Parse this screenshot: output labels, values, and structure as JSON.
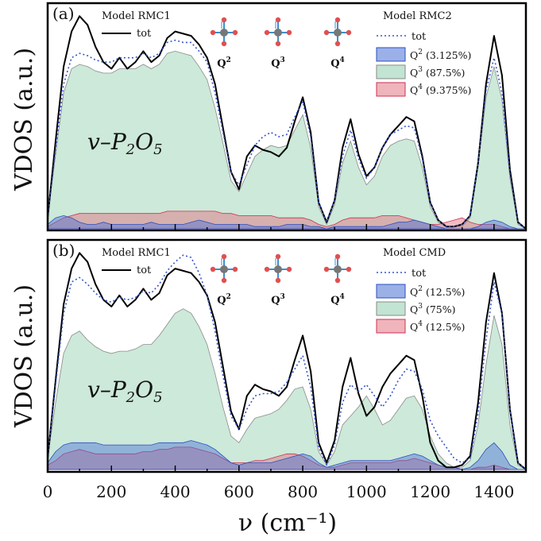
{
  "figure": {
    "ylabel": "VDOS (a.u.)",
    "xlabel": "ν (cm⁻¹)",
    "x_ticks": [
      "0",
      "200",
      "400",
      "600",
      "800",
      "1000",
      "1200",
      "1400"
    ]
  },
  "icons": [
    "q2-tetrahedron-icon",
    "q3-tetrahedron-icon",
    "q4-tetrahedron-icon"
  ],
  "colors": {
    "tot_solid": "#000000",
    "tot_dotted": "#3355cc",
    "q2": "#4a6fd6",
    "q3": "#bfe3d0",
    "q4": "#e06a7a"
  },
  "chart_data": [
    {
      "type": "area",
      "panel": "(a)",
      "species_label": "v–P2O5",
      "legend_left": {
        "title": "Model RMC1",
        "entries": [
          "tot"
        ]
      },
      "legend_right": {
        "title": "Model RMC2",
        "entries": [
          "tot",
          "Q2 (3.125%)",
          "Q3 (87.5%)",
          "Q4 (9.375%)"
        ]
      },
      "q_labels": [
        "Q2",
        "Q3",
        "Q4"
      ],
      "xlim": [
        0,
        1500
      ],
      "ylim": [
        0,
        1.0
      ],
      "x": [
        0,
        25,
        50,
        75,
        100,
        125,
        150,
        175,
        200,
        225,
        250,
        275,
        300,
        325,
        350,
        375,
        400,
        425,
        450,
        475,
        500,
        525,
        550,
        575,
        600,
        625,
        650,
        675,
        700,
        725,
        750,
        775,
        800,
        825,
        850,
        875,
        900,
        925,
        950,
        975,
        1000,
        1025,
        1050,
        1075,
        1100,
        1125,
        1150,
        1175,
        1200,
        1225,
        1250,
        1275,
        1300,
        1325,
        1350,
        1375,
        1400,
        1425,
        1450,
        1475,
        1500
      ],
      "series": [
        {
          "name": "Model RMC1 tot",
          "style": "solid",
          "values": [
            0.05,
            0.4,
            0.74,
            0.9,
            0.97,
            0.93,
            0.83,
            0.76,
            0.73,
            0.78,
            0.73,
            0.76,
            0.81,
            0.76,
            0.79,
            0.87,
            0.9,
            0.89,
            0.88,
            0.84,
            0.78,
            0.66,
            0.46,
            0.26,
            0.18,
            0.33,
            0.38,
            0.36,
            0.35,
            0.33,
            0.37,
            0.49,
            0.6,
            0.44,
            0.12,
            0.03,
            0.13,
            0.37,
            0.5,
            0.34,
            0.24,
            0.28,
            0.37,
            0.43,
            0.47,
            0.51,
            0.49,
            0.33,
            0.12,
            0.04,
            0.01,
            0.01,
            0.02,
            0.06,
            0.3,
            0.66,
            0.88,
            0.7,
            0.27,
            0.03,
            0.0
          ]
        },
        {
          "name": "Model RMC2 tot",
          "style": "dotted",
          "values": [
            0.05,
            0.36,
            0.66,
            0.78,
            0.8,
            0.79,
            0.77,
            0.76,
            0.76,
            0.78,
            0.78,
            0.78,
            0.8,
            0.78,
            0.8,
            0.85,
            0.86,
            0.85,
            0.85,
            0.81,
            0.76,
            0.62,
            0.44,
            0.26,
            0.2,
            0.29,
            0.38,
            0.42,
            0.44,
            0.42,
            0.43,
            0.51,
            0.58,
            0.42,
            0.12,
            0.03,
            0.13,
            0.33,
            0.45,
            0.32,
            0.23,
            0.28,
            0.37,
            0.43,
            0.45,
            0.47,
            0.46,
            0.32,
            0.12,
            0.04,
            0.01,
            0.01,
            0.02,
            0.06,
            0.3,
            0.63,
            0.78,
            0.62,
            0.25,
            0.03,
            0.0
          ]
        },
        {
          "name": "Q2 (3.125%)",
          "style": "fill",
          "values": [
            0.02,
            0.05,
            0.06,
            0.05,
            0.03,
            0.02,
            0.02,
            0.03,
            0.02,
            0.02,
            0.02,
            0.02,
            0.02,
            0.03,
            0.02,
            0.02,
            0.02,
            0.02,
            0.03,
            0.04,
            0.03,
            0.02,
            0.02,
            0.02,
            0.02,
            0.02,
            0.01,
            0.01,
            0.01,
            0.01,
            0.02,
            0.02,
            0.02,
            0.01,
            0.01,
            0.0,
            0.01,
            0.01,
            0.01,
            0.01,
            0.01,
            0.01,
            0.01,
            0.02,
            0.03,
            0.03,
            0.04,
            0.03,
            0.02,
            0.01,
            0.0,
            0.0,
            0.0,
            0.0,
            0.01,
            0.03,
            0.04,
            0.03,
            0.01,
            0.0,
            0.0
          ]
        },
        {
          "name": "Q3 (87.5%)",
          "style": "fill",
          "values": [
            0.05,
            0.34,
            0.62,
            0.73,
            0.75,
            0.74,
            0.72,
            0.71,
            0.71,
            0.73,
            0.73,
            0.73,
            0.75,
            0.73,
            0.75,
            0.8,
            0.81,
            0.8,
            0.79,
            0.74,
            0.68,
            0.55,
            0.39,
            0.22,
            0.17,
            0.25,
            0.33,
            0.36,
            0.38,
            0.37,
            0.38,
            0.45,
            0.52,
            0.37,
            0.1,
            0.02,
            0.11,
            0.3,
            0.4,
            0.28,
            0.2,
            0.24,
            0.33,
            0.38,
            0.4,
            0.41,
            0.4,
            0.28,
            0.1,
            0.03,
            0.01,
            0.01,
            0.01,
            0.05,
            0.28,
            0.6,
            0.74,
            0.59,
            0.23,
            0.02,
            0.0
          ]
        },
        {
          "name": "Q4 (9.375%)",
          "style": "fill",
          "values": [
            0.01,
            0.03,
            0.05,
            0.06,
            0.07,
            0.07,
            0.07,
            0.07,
            0.07,
            0.07,
            0.07,
            0.07,
            0.07,
            0.07,
            0.07,
            0.08,
            0.08,
            0.08,
            0.08,
            0.08,
            0.08,
            0.08,
            0.07,
            0.07,
            0.06,
            0.06,
            0.06,
            0.06,
            0.06,
            0.05,
            0.05,
            0.05,
            0.05,
            0.04,
            0.02,
            0.01,
            0.02,
            0.04,
            0.05,
            0.05,
            0.05,
            0.05,
            0.06,
            0.06,
            0.06,
            0.05,
            0.04,
            0.03,
            0.02,
            0.02,
            0.03,
            0.04,
            0.05,
            0.03,
            0.02,
            0.02,
            0.02,
            0.01,
            0.0,
            0.0,
            0.0
          ]
        }
      ]
    },
    {
      "type": "area",
      "panel": "(b)",
      "species_label": "v–P2O5",
      "legend_left": {
        "title": "Model RMC1",
        "entries": [
          "tot"
        ]
      },
      "legend_right": {
        "title": "Model CMD",
        "entries": [
          "tot",
          "Q2 (12.5%)",
          "Q3 (75%)",
          "Q4 (12.5%)"
        ]
      },
      "q_labels": [
        "Q2",
        "Q3",
        "Q4"
      ],
      "xlim": [
        0,
        1500
      ],
      "ylim": [
        0,
        1.0
      ],
      "x": [
        0,
        25,
        50,
        75,
        100,
        125,
        150,
        175,
        200,
        225,
        250,
        275,
        300,
        325,
        350,
        375,
        400,
        425,
        450,
        475,
        500,
        525,
        550,
        575,
        600,
        625,
        650,
        675,
        700,
        725,
        750,
        775,
        800,
        825,
        850,
        875,
        900,
        925,
        950,
        975,
        1000,
        1025,
        1050,
        1075,
        1100,
        1125,
        1150,
        1175,
        1200,
        1225,
        1250,
        1275,
        1300,
        1325,
        1350,
        1375,
        1400,
        1425,
        1450,
        1475,
        1500
      ],
      "series": [
        {
          "name": "Model RMC1 tot",
          "style": "solid",
          "values": [
            0.05,
            0.4,
            0.74,
            0.9,
            0.97,
            0.93,
            0.83,
            0.76,
            0.73,
            0.78,
            0.73,
            0.76,
            0.81,
            0.76,
            0.79,
            0.87,
            0.9,
            0.89,
            0.88,
            0.84,
            0.78,
            0.66,
            0.46,
            0.26,
            0.18,
            0.33,
            0.38,
            0.36,
            0.35,
            0.33,
            0.37,
            0.49,
            0.6,
            0.44,
            0.12,
            0.03,
            0.13,
            0.37,
            0.5,
            0.34,
            0.24,
            0.28,
            0.37,
            0.43,
            0.47,
            0.51,
            0.49,
            0.33,
            0.12,
            0.04,
            0.01,
            0.01,
            0.02,
            0.06,
            0.3,
            0.66,
            0.88,
            0.7,
            0.27,
            0.03,
            0.0
          ]
        },
        {
          "name": "Model CMD tot",
          "style": "dotted",
          "values": [
            0.05,
            0.38,
            0.7,
            0.84,
            0.86,
            0.83,
            0.79,
            0.76,
            0.75,
            0.77,
            0.76,
            0.77,
            0.8,
            0.79,
            0.83,
            0.89,
            0.93,
            0.96,
            0.95,
            0.88,
            0.78,
            0.62,
            0.42,
            0.24,
            0.18,
            0.27,
            0.33,
            0.34,
            0.34,
            0.35,
            0.39,
            0.45,
            0.51,
            0.37,
            0.1,
            0.02,
            0.11,
            0.3,
            0.38,
            0.35,
            0.38,
            0.33,
            0.28,
            0.33,
            0.4,
            0.45,
            0.44,
            0.36,
            0.22,
            0.15,
            0.1,
            0.05,
            0.03,
            0.05,
            0.25,
            0.58,
            0.84,
            0.7,
            0.27,
            0.03,
            0.0
          ]
        },
        {
          "name": "Q2 (12.5%)",
          "style": "fill",
          "values": [
            0.03,
            0.08,
            0.11,
            0.12,
            0.12,
            0.12,
            0.12,
            0.11,
            0.11,
            0.11,
            0.11,
            0.11,
            0.11,
            0.11,
            0.12,
            0.12,
            0.12,
            0.12,
            0.13,
            0.12,
            0.11,
            0.09,
            0.06,
            0.03,
            0.02,
            0.03,
            0.03,
            0.03,
            0.03,
            0.04,
            0.05,
            0.06,
            0.07,
            0.06,
            0.03,
            0.01,
            0.02,
            0.03,
            0.04,
            0.04,
            0.04,
            0.04,
            0.04,
            0.04,
            0.05,
            0.06,
            0.07,
            0.06,
            0.04,
            0.02,
            0.01,
            0.01,
            0.0,
            0.01,
            0.04,
            0.09,
            0.12,
            0.08,
            0.02,
            0.0,
            0.0
          ]
        },
        {
          "name": "Q3 (75%)",
          "style": "fill",
          "values": [
            0.05,
            0.3,
            0.52,
            0.6,
            0.62,
            0.58,
            0.55,
            0.53,
            0.52,
            0.53,
            0.53,
            0.54,
            0.56,
            0.56,
            0.6,
            0.65,
            0.7,
            0.72,
            0.7,
            0.64,
            0.56,
            0.43,
            0.28,
            0.15,
            0.12,
            0.18,
            0.23,
            0.24,
            0.25,
            0.27,
            0.31,
            0.36,
            0.37,
            0.27,
            0.08,
            0.02,
            0.08,
            0.2,
            0.24,
            0.28,
            0.33,
            0.27,
            0.2,
            0.22,
            0.27,
            0.32,
            0.33,
            0.27,
            0.15,
            0.07,
            0.03,
            0.01,
            0.01,
            0.04,
            0.2,
            0.47,
            0.69,
            0.56,
            0.2,
            0.02,
            0.0
          ]
        },
        {
          "name": "Q4 (12.5%)",
          "style": "fill",
          "values": [
            0.02,
            0.04,
            0.07,
            0.08,
            0.09,
            0.08,
            0.07,
            0.07,
            0.07,
            0.07,
            0.07,
            0.07,
            0.08,
            0.08,
            0.09,
            0.09,
            0.1,
            0.1,
            0.1,
            0.09,
            0.08,
            0.07,
            0.05,
            0.03,
            0.03,
            0.03,
            0.04,
            0.04,
            0.05,
            0.06,
            0.07,
            0.07,
            0.06,
            0.04,
            0.02,
            0.01,
            0.01,
            0.02,
            0.03,
            0.03,
            0.03,
            0.03,
            0.03,
            0.03,
            0.04,
            0.04,
            0.05,
            0.04,
            0.03,
            0.02,
            0.01,
            0.01,
            0.0,
            0.0,
            0.01,
            0.01,
            0.02,
            0.01,
            0.0,
            0.0,
            0.0
          ]
        }
      ]
    }
  ]
}
